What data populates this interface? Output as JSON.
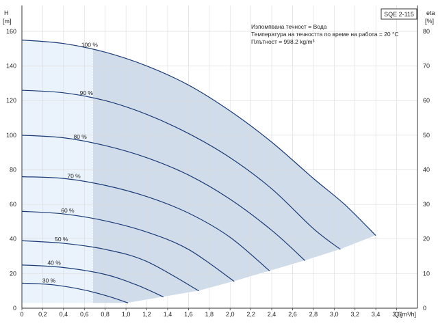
{
  "chart_data": {
    "type": "line",
    "title_box": "SQE 2-115",
    "info_lines": [
      "Изпомпвана течност = Вода",
      "Температура на течността по време на работа = 20 °C",
      "Плътност = 998.2 kg/m³"
    ],
    "y_label_left": [
      "H",
      "[m]"
    ],
    "y_label_right": [
      "eta",
      "[%]"
    ],
    "x_label": [
      "Q",
      "[m³/h]"
    ],
    "xlim": [
      0,
      3.8
    ],
    "ylim_left": [
      0,
      175
    ],
    "ylim_right": [
      0,
      87.5
    ],
    "x_ticks": [
      "0",
      "0,2",
      "0,4",
      "0,6",
      "0,8",
      "1,0",
      "1,2",
      "1,4",
      "1,6",
      "1,8",
      "2,0",
      "2,2",
      "2,4",
      "2,6",
      "2,8",
      "3,0",
      "3,2",
      "3,4",
      "3,6"
    ],
    "y_ticks_left": [
      "0",
      "20",
      "40",
      "60",
      "80",
      "100",
      "120",
      "140",
      "160"
    ],
    "y_ticks_right": [
      "0",
      "10",
      "20",
      "30",
      "40",
      "50",
      "60",
      "70",
      "80"
    ],
    "grid": true,
    "shaded_region_start_x": 0.68,
    "colors": {
      "curve": "#1a3a75",
      "shade_dark": "#d0dce9",
      "shade_light": "#eaf3fc",
      "grid": "#d9d9d9",
      "axis": "#333333"
    },
    "series": [
      {
        "name": "100 %",
        "x": [
          0,
          0.4,
          0.8,
          1.2,
          1.6,
          2.0,
          2.4,
          2.8,
          3.1,
          3.4
        ],
        "y": [
          155,
          153,
          148,
          140,
          129,
          114,
          96,
          75,
          60,
          42
        ]
      },
      {
        "name": "90 %",
        "x": [
          0,
          0.4,
          0.8,
          1.2,
          1.6,
          2.0,
          2.4,
          2.8,
          3.06
        ],
        "y": [
          126,
          124.5,
          120,
          112,
          101,
          87,
          69,
          46,
          34
        ]
      },
      {
        "name": "80 %",
        "x": [
          0,
          0.4,
          0.8,
          1.2,
          1.6,
          2.0,
          2.4,
          2.72
        ],
        "y": [
          100,
          98.5,
          94,
          87,
          77,
          63,
          45,
          27.5
        ]
      },
      {
        "name": "70 %",
        "x": [
          0,
          0.4,
          0.8,
          1.2,
          1.6,
          2.0,
          2.38
        ],
        "y": [
          76,
          75,
          71,
          64.5,
          55,
          41,
          21.5
        ]
      },
      {
        "name": "60 %",
        "x": [
          0,
          0.4,
          0.8,
          1.2,
          1.6,
          2.04
        ],
        "y": [
          56,
          54.5,
          50.5,
          44,
          34,
          15.5
        ]
      },
      {
        "name": "50 %",
        "x": [
          0,
          0.4,
          0.8,
          1.2,
          1.7
        ],
        "y": [
          39,
          37.5,
          34,
          27,
          10
        ]
      },
      {
        "name": "40 %",
        "x": [
          0,
          0.4,
          0.8,
          1.1,
          1.36
        ],
        "y": [
          25,
          23.5,
          19.5,
          13.5,
          6.5
        ]
      },
      {
        "name": "30 %",
        "x": [
          0,
          0.3,
          0.6,
          0.85,
          1.02
        ],
        "y": [
          14.5,
          13.5,
          10.5,
          6.5,
          3
        ]
      }
    ]
  }
}
